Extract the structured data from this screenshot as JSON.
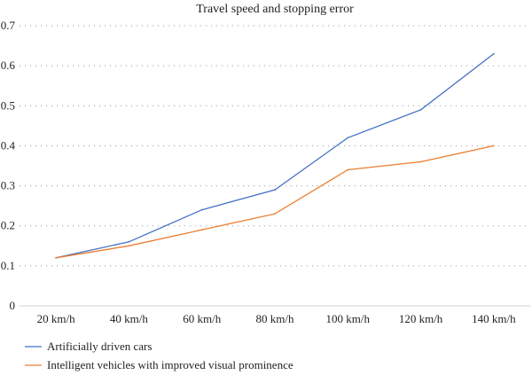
{
  "chart_data": {
    "type": "line",
    "title": "Travel speed and stopping error",
    "xlabel": "",
    "ylabel": "",
    "categories": [
      "20 km/h",
      "40 km/h",
      "60 km/h",
      "80 km/h",
      "100 km/h",
      "120 km/h",
      "140 km/h"
    ],
    "y_ticks": [
      "0",
      "0.1",
      "0.2",
      "0.3",
      "0.4",
      "0.5",
      "0.6",
      "0.7"
    ],
    "ylim": [
      0,
      0.7
    ],
    "grid": true,
    "legend_position": "bottom-left",
    "series": [
      {
        "name": "Artificially driven cars",
        "color": "#4472c4",
        "values": [
          0.12,
          0.16,
          0.24,
          0.29,
          0.42,
          0.49,
          0.63
        ]
      },
      {
        "name": "Intelligent vehicles with improved visual prominence",
        "color": "#ed7d31",
        "values": [
          0.12,
          0.15,
          0.19,
          0.23,
          0.34,
          0.36,
          0.4
        ]
      }
    ]
  }
}
